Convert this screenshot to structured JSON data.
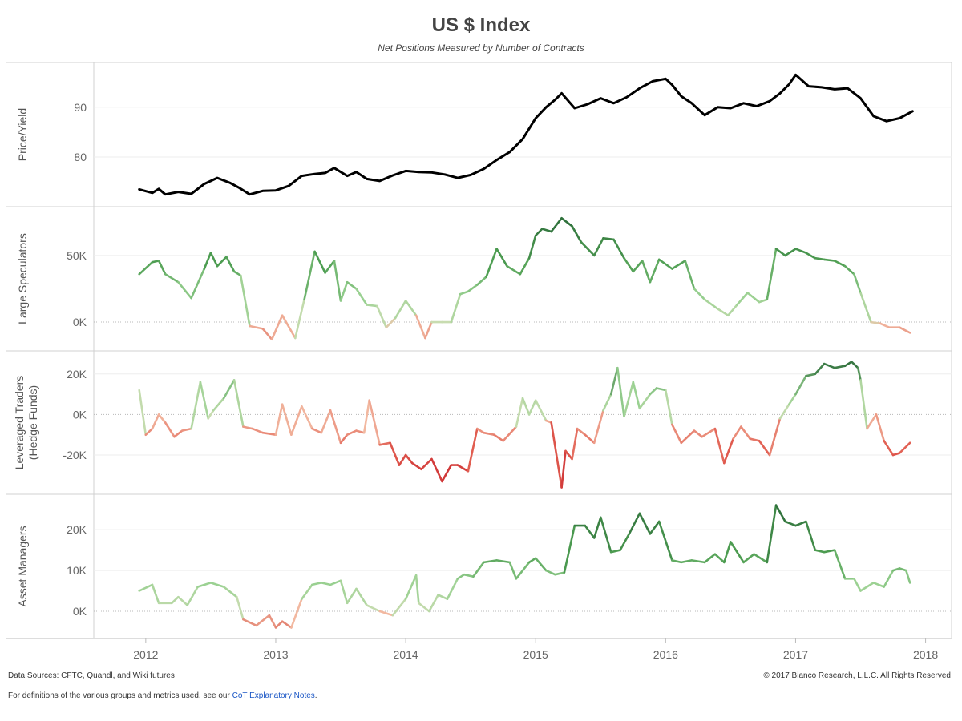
{
  "chart_data": {
    "type": "line",
    "title": "US $ Index",
    "subtitle": "Net Positions Measured by Number of Contracts",
    "x_ticks": [
      "2012",
      "2013",
      "2014",
      "2015",
      "2016",
      "2017",
      "2018"
    ],
    "xlim": [
      2011.6,
      2018.2
    ],
    "panels": [
      {
        "name": "price",
        "ylabel": [
          "Price/Yield"
        ],
        "ylim": [
          71,
          98
        ],
        "y_ticks": [
          {
            "value": 80,
            "label": "80"
          },
          {
            "value": 90,
            "label": "90"
          }
        ],
        "zero_line": false,
        "color_mode": "solid",
        "x": [
          2011.95,
          2012.05,
          2012.1,
          2012.15,
          2012.25,
          2012.35,
          2012.45,
          2012.55,
          2012.65,
          2012.72,
          2012.8,
          2012.9,
          2013.0,
          2013.1,
          2013.2,
          2013.3,
          2013.38,
          2013.45,
          2013.55,
          2013.62,
          2013.7,
          2013.8,
          2013.9,
          2014.0,
          2014.1,
          2014.2,
          2014.3,
          2014.4,
          2014.5,
          2014.6,
          2014.7,
          2014.8,
          2014.9,
          2015.0,
          2015.08,
          2015.15,
          2015.2,
          2015.3,
          2015.4,
          2015.5,
          2015.6,
          2015.7,
          2015.8,
          2015.9,
          2016.0,
          2016.05,
          2016.12,
          2016.2,
          2016.3,
          2016.4,
          2016.5,
          2016.6,
          2016.7,
          2016.8,
          2016.88,
          2016.95,
          2017.0,
          2017.1,
          2017.2,
          2017.3,
          2017.4,
          2017.5,
          2017.6,
          2017.7,
          2017.8,
          2017.9
        ],
        "y": [
          73.5,
          72.8,
          73.6,
          72.5,
          73.0,
          72.6,
          74.6,
          75.8,
          74.8,
          73.8,
          72.5,
          73.2,
          73.3,
          74.2,
          76.2,
          76.6,
          76.8,
          77.8,
          76.2,
          77.0,
          75.6,
          75.2,
          76.3,
          77.2,
          77.0,
          76.9,
          76.5,
          75.8,
          76.4,
          77.6,
          79.4,
          81.0,
          83.6,
          87.8,
          90.0,
          91.5,
          92.8,
          89.8,
          90.6,
          91.8,
          90.8,
          92.0,
          93.8,
          95.2,
          95.7,
          94.5,
          92.2,
          90.8,
          88.4,
          90.0,
          89.8,
          90.8,
          90.2,
          91.2,
          92.8,
          94.6,
          96.5,
          94.2,
          94.0,
          93.6,
          93.8,
          91.8,
          88.2,
          87.2,
          87.8,
          89.2
        ],
        "color": "#000000"
      },
      {
        "name": "large-speculators",
        "ylabel": [
          "Large Speculators"
        ],
        "ylim": [
          -18,
          83
        ],
        "y_ticks": [
          {
            "value": 0,
            "label": "0K"
          },
          {
            "value": 50,
            "label": "50K"
          }
        ],
        "zero_line": true,
        "color_mode": "diverging",
        "x": [
          2011.95,
          2012.05,
          2012.1,
          2012.15,
          2012.25,
          2012.35,
          2012.45,
          2012.5,
          2012.55,
          2012.62,
          2012.68,
          2012.73,
          2012.8,
          2012.9,
          2012.97,
          2013.05,
          2013.15,
          2013.22,
          2013.3,
          2013.38,
          2013.45,
          2013.5,
          2013.55,
          2013.62,
          2013.7,
          2013.78,
          2013.85,
          2013.92,
          2014.0,
          2014.08,
          2014.15,
          2014.2,
          2014.28,
          2014.35,
          2014.42,
          2014.48,
          2014.55,
          2014.62,
          2014.7,
          2014.78,
          2014.88,
          2014.95,
          2015.0,
          2015.05,
          2015.12,
          2015.2,
          2015.28,
          2015.35,
          2015.45,
          2015.52,
          2015.6,
          2015.68,
          2015.75,
          2015.82,
          2015.88,
          2015.95,
          2016.05,
          2016.15,
          2016.22,
          2016.3,
          2016.4,
          2016.48,
          2016.55,
          2016.63,
          2016.72,
          2016.78,
          2016.85,
          2016.92,
          2017.0,
          2017.08,
          2017.15,
          2017.22,
          2017.3,
          2017.38,
          2017.45,
          2017.5,
          2017.58,
          2017.65,
          2017.72,
          2017.8,
          2017.88
        ],
        "y": [
          36,
          45,
          46,
          36,
          30,
          18,
          40,
          52,
          42,
          49,
          38,
          35,
          -3,
          -5,
          -13,
          5,
          -12,
          17,
          53,
          37,
          46,
          16,
          30,
          25,
          13,
          12,
          -4,
          3,
          16,
          5,
          -12,
          0,
          0,
          0,
          21,
          23,
          28,
          34,
          55,
          42,
          36,
          48,
          65,
          70,
          68,
          78,
          72,
          60,
          50,
          63,
          62,
          48,
          38,
          46,
          30,
          47,
          40,
          46,
          25,
          17,
          10,
          5,
          13,
          22,
          15,
          17,
          55,
          50,
          55,
          52,
          48,
          47,
          46,
          42,
          36,
          22,
          0,
          -1,
          -4,
          -4,
          -8
        ],
        "stops": [
          {
            "v": -15,
            "color": "#e07868"
          },
          {
            "v": -1,
            "color": "#f2b8a0"
          },
          {
            "v": 0,
            "color": "#c8dcb0"
          },
          {
            "v": 20,
            "color": "#98d090"
          },
          {
            "v": 45,
            "color": "#4e9e52"
          },
          {
            "v": 78,
            "color": "#2d6e3a"
          }
        ]
      },
      {
        "name": "leveraged-traders",
        "ylabel": [
          "Leveraged Traders",
          "(Hedge Funds)"
        ],
        "ylim": [
          -37,
          29
        ],
        "y_ticks": [
          {
            "value": -20,
            "label": "-20K"
          },
          {
            "value": 0,
            "label": "0K"
          },
          {
            "value": 20,
            "label": "20K"
          }
        ],
        "zero_line": true,
        "color_mode": "diverging",
        "x": [
          2011.95,
          2012.0,
          2012.05,
          2012.1,
          2012.15,
          2012.22,
          2012.28,
          2012.35,
          2012.42,
          2012.48,
          2012.52,
          2012.6,
          2012.68,
          2012.75,
          2012.82,
          2012.9,
          2013.0,
          2013.05,
          2013.12,
          2013.2,
          2013.28,
          2013.35,
          2013.42,
          2013.5,
          2013.55,
          2013.62,
          2013.68,
          2013.72,
          2013.8,
          2013.88,
          2013.95,
          2014.0,
          2014.05,
          2014.12,
          2014.2,
          2014.28,
          2014.35,
          2014.4,
          2014.48,
          2014.55,
          2014.6,
          2014.68,
          2014.75,
          2014.85,
          2014.9,
          2014.95,
          2015.0,
          2015.08,
          2015.12,
          2015.2,
          2015.23,
          2015.28,
          2015.32,
          2015.38,
          2015.45,
          2015.52,
          2015.58,
          2015.63,
          2015.68,
          2015.75,
          2015.8,
          2015.88,
          2015.93,
          2016.0,
          2016.05,
          2016.12,
          2016.22,
          2016.28,
          2016.38,
          2016.45,
          2016.52,
          2016.58,
          2016.65,
          2016.72,
          2016.8,
          2016.88,
          2016.95,
          2017.0,
          2017.08,
          2017.15,
          2017.22,
          2017.3,
          2017.38,
          2017.43,
          2017.48,
          2017.5,
          2017.55,
          2017.62,
          2017.68,
          2017.75,
          2017.8,
          2017.88
        ],
        "y": [
          12,
          -10,
          -7,
          0,
          -4,
          -11,
          -8,
          -7,
          16,
          -2,
          2,
          8,
          17,
          -6,
          -7,
          -9,
          -10,
          5,
          -10,
          4,
          -7,
          -9,
          2,
          -14,
          -10,
          -8,
          -9,
          7,
          -15,
          -14,
          -25,
          -20,
          -24,
          -27,
          -22,
          -33,
          -25,
          -25,
          -28,
          -7,
          -9,
          -10,
          -13,
          -6,
          8,
          0,
          7,
          -3,
          -4,
          -36,
          -18,
          -22,
          -7,
          -10,
          -14,
          2,
          10,
          23,
          -1,
          16,
          3,
          10,
          13,
          12,
          -5,
          -14,
          -8,
          -11,
          -7,
          -24,
          -12,
          -6,
          -12,
          -13,
          -20,
          -2,
          5,
          10,
          19,
          20,
          25,
          23,
          24,
          26,
          23,
          17,
          -7,
          0,
          -13,
          -20,
          -19,
          -14
        ],
        "stops": [
          {
            "v": -35,
            "color": "#c8242c"
          },
          {
            "v": -18,
            "color": "#e05a4e"
          },
          {
            "v": -1,
            "color": "#f2b8a0"
          },
          {
            "v": 0,
            "color": "#c8dcb0"
          },
          {
            "v": 10,
            "color": "#98d090"
          },
          {
            "v": 26,
            "color": "#2d6e3a"
          }
        ]
      },
      {
        "name": "asset-managers",
        "ylabel": [
          "Asset Managers"
        ],
        "ylim": [
          -5.5,
          27.5
        ],
        "y_ticks": [
          {
            "value": 0,
            "label": "0K"
          },
          {
            "value": 10,
            "label": "10K"
          },
          {
            "value": 20,
            "label": "20K"
          }
        ],
        "zero_line": true,
        "color_mode": "diverging",
        "x": [
          2011.95,
          2012.05,
          2012.1,
          2012.2,
          2012.25,
          2012.32,
          2012.4,
          2012.5,
          2012.6,
          2012.7,
          2012.75,
          2012.85,
          2012.95,
          2013.0,
          2013.05,
          2013.12,
          2013.2,
          2013.28,
          2013.35,
          2013.42,
          2013.5,
          2013.55,
          2013.62,
          2013.7,
          2013.8,
          2013.9,
          2014.0,
          2014.08,
          2014.1,
          2014.18,
          2014.25,
          2014.32,
          2014.4,
          2014.45,
          2014.52,
          2014.6,
          2014.7,
          2014.8,
          2014.85,
          2014.95,
          2015.0,
          2015.08,
          2015.15,
          2015.22,
          2015.3,
          2015.38,
          2015.45,
          2015.5,
          2015.58,
          2015.65,
          2015.72,
          2015.8,
          2015.88,
          2015.95,
          2016.05,
          2016.12,
          2016.2,
          2016.3,
          2016.38,
          2016.45,
          2016.5,
          2016.6,
          2016.68,
          2016.78,
          2016.85,
          2016.92,
          2017.0,
          2017.08,
          2017.15,
          2017.22,
          2017.3,
          2017.38,
          2017.45,
          2017.5,
          2017.6,
          2017.68,
          2017.75,
          2017.8,
          2017.85,
          2017.88
        ],
        "y": [
          5,
          6.5,
          2,
          2,
          3.5,
          1.5,
          6,
          7,
          6,
          3.5,
          -2,
          -3.5,
          -1,
          -4,
          -2.5,
          -4,
          3,
          6.5,
          7,
          6.5,
          7.5,
          2,
          5.5,
          1.5,
          0,
          -1,
          3,
          8.8,
          2,
          0,
          4,
          3,
          8,
          9,
          8.5,
          12,
          12.5,
          12,
          8,
          12,
          13,
          10,
          9,
          9.5,
          21,
          21,
          18,
          23,
          14.5,
          15,
          19,
          24,
          19,
          22,
          12.5,
          12,
          12.5,
          12,
          14,
          12,
          17,
          12,
          14,
          12,
          26,
          22,
          21,
          22,
          15,
          14.5,
          15,
          8,
          8,
          5,
          7,
          6,
          10,
          10.5,
          10,
          7
        ],
        "stops": [
          {
            "v": -4,
            "color": "#e07868"
          },
          {
            "v": -0.5,
            "color": "#f2b8a0"
          },
          {
            "v": 0,
            "color": "#c8dcb0"
          },
          {
            "v": 7,
            "color": "#98d090"
          },
          {
            "v": 14,
            "color": "#4e9e52"
          },
          {
            "v": 25,
            "color": "#2d6e3a"
          }
        ]
      }
    ]
  },
  "footer": {
    "sources": "Data Sources: CFTC, Quandl, and Wiki futures",
    "copyright": "© 2017 Bianco Research, L.L.C. All Rights Reserved",
    "note_prefix": "For definitions of the various groups and metrics used, see our ",
    "link_text": "CoT Explanatory Notes",
    "note_suffix": "."
  }
}
